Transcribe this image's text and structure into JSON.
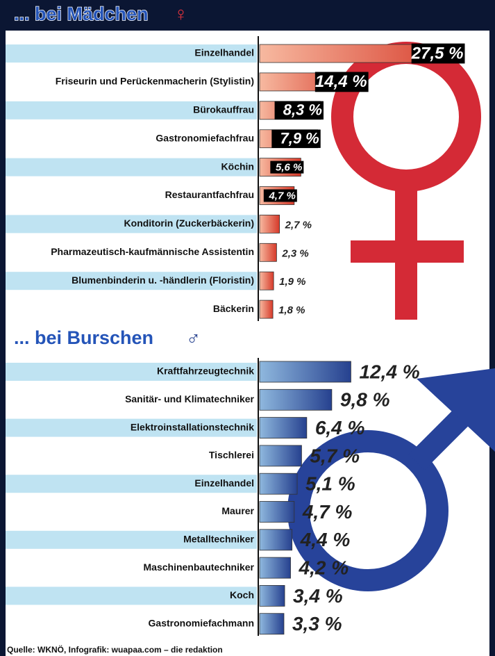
{
  "chart_data": [
    {
      "type": "bar",
      "orientation": "horizontal",
      "title": "... bei Mädchen",
      "symbol": "♀",
      "color": "#d63a2a",
      "categories": [
        "Einzelhandel",
        "Friseurin und Perückenmacherin (Stylistin)",
        "Bürokauffrau",
        "Gastronomiefachfrau",
        "Köchin",
        "Restaurantfachfrau",
        "Konditorin (Zuckerbäckerin)",
        "Pharmazeutisch-kaufmännische Assistentin",
        "Blumenbinderin u. -händlerin (Floristin)",
        "Bäckerin"
      ],
      "values": [
        27.5,
        14.4,
        8.3,
        7.9,
        5.6,
        4.7,
        2.7,
        2.3,
        1.9,
        1.8
      ],
      "value_labels": [
        "27,5 %",
        "14,4 %",
        "8,3 %",
        "7,9 %",
        "5,6 %",
        "4,7 %",
        "2,7 %",
        "2,3 %",
        "1,9 %",
        "1,8 %"
      ]
    },
    {
      "type": "bar",
      "orientation": "horizontal",
      "title": "... bei Burschen",
      "symbol": "♂",
      "color": "#26418f",
      "categories": [
        "Kraftfahrzeugtechnik",
        "Sanitär- und Klimatechniker",
        "Elektroinstallationstechnik",
        "Tischlerei",
        "Einzelhandel",
        "Maurer",
        "Metalltechniker",
        "Maschinenbautechniker",
        "Koch",
        "Gastronomiefachmann"
      ],
      "values": [
        12.4,
        9.8,
        6.4,
        5.7,
        5.1,
        4.7,
        4.4,
        4.2,
        3.4,
        3.3
      ],
      "value_labels": [
        "12,4 %",
        "9,8 %",
        "6,4 %",
        "5,7 %",
        "5,1 %",
        "4,7 %",
        "4,4 %",
        "4,2 %",
        "3,4 %",
        "3,3 %"
      ]
    }
  ],
  "source": "Quelle: WKNÖ, Infografik: wuapaa.com – die redaktion"
}
